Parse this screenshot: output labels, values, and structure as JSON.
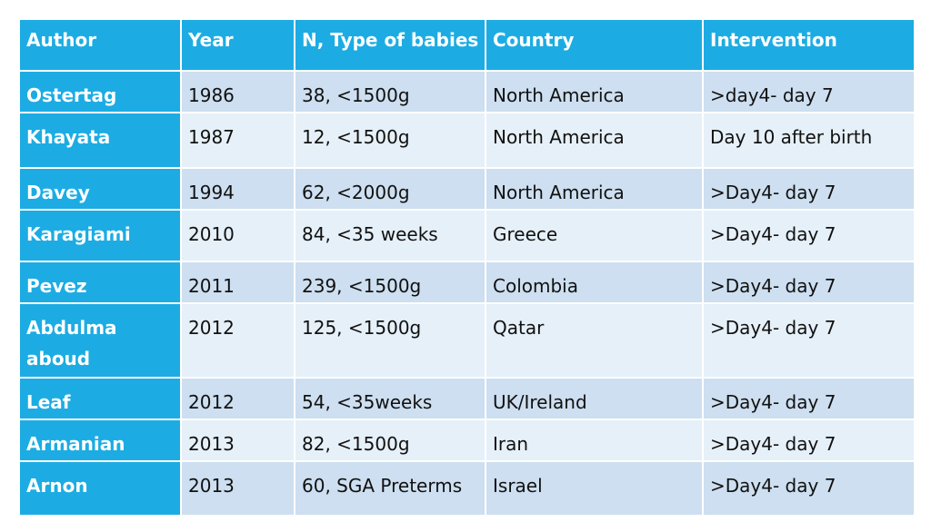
{
  "table": {
    "headers": [
      "Author",
      "Year",
      "N, Type of babies",
      "Country",
      "Intervention"
    ],
    "rows": [
      [
        "Ostertag",
        "1986",
        "38, <1500g",
        "North America",
        ">day4- day 7"
      ],
      [
        "Khayata",
        "1987",
        "12, <1500g",
        "North America",
        "Day 10 after birth"
      ],
      [
        "Davey",
        "1994",
        "62, <2000g",
        "North America",
        ">Day4- day 7"
      ],
      [
        "Karagiami",
        "2010",
        "84, <35 weeks",
        "Greece",
        ">Day4- day 7"
      ],
      [
        "Pevez",
        "2011",
        "239, <1500g",
        "Colombia",
        ">Day4- day 7"
      ],
      [
        "Abdulma aboud",
        "2012",
        "125, <1500g",
        "Qatar",
        ">Day4- day 7"
      ],
      [
        "Leaf",
        "2012",
        "54, <35weeks",
        "UK/Ireland",
        ">Day4- day 7"
      ],
      [
        "Armanian",
        "2013",
        "82, <1500g",
        "Iran",
        ">Day4- day 7"
      ],
      [
        "Arnon",
        "2013",
        "60, SGA Preterms",
        "Israel",
        ">Day4- day 7"
      ]
    ]
  },
  "colors": {
    "header_bg": "#1cace3",
    "row_dark": "#cddff0",
    "row_light": "#e6f0f8"
  }
}
